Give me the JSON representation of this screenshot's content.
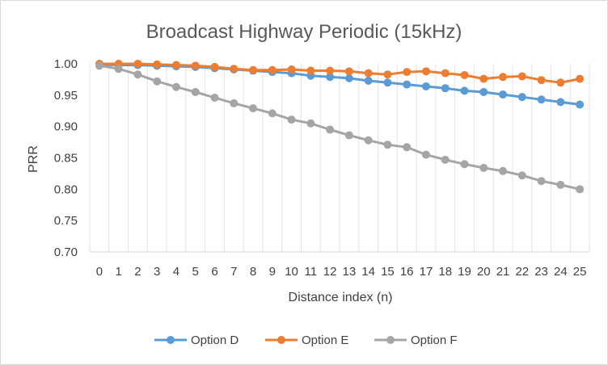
{
  "chart_data": {
    "type": "line",
    "title": "Broadcast Highway Periodic (15kHz)",
    "xlabel": "Distance index (n)",
    "ylabel": "PRR",
    "x": [
      0,
      1,
      2,
      3,
      4,
      5,
      6,
      7,
      8,
      9,
      10,
      11,
      12,
      13,
      14,
      15,
      16,
      17,
      18,
      19,
      20,
      21,
      22,
      23,
      24,
      25
    ],
    "ylim": [
      0.7,
      1.0
    ],
    "yticks": [
      "0.70",
      "0.75",
      "0.80",
      "0.85",
      "0.90",
      "0.95",
      "1.00"
    ],
    "grid": "vertical",
    "legend": "bottom",
    "series": [
      {
        "name": "Option D",
        "color": "#5b9bd5",
        "values": [
          0.999,
          0.998,
          0.998,
          0.997,
          0.996,
          0.995,
          0.993,
          0.991,
          0.989,
          0.987,
          0.985,
          0.981,
          0.979,
          0.977,
          0.973,
          0.97,
          0.967,
          0.964,
          0.961,
          0.957,
          0.955,
          0.951,
          0.947,
          0.943,
          0.939,
          0.935
        ]
      },
      {
        "name": "Option E",
        "color": "#ed7d31",
        "values": [
          1.0,
          1.0,
          1.0,
          0.999,
          0.998,
          0.997,
          0.995,
          0.992,
          0.99,
          0.99,
          0.991,
          0.989,
          0.989,
          0.988,
          0.985,
          0.983,
          0.987,
          0.988,
          0.985,
          0.982,
          0.976,
          0.979,
          0.98,
          0.974,
          0.97,
          0.976
        ]
      },
      {
        "name": "Option F",
        "color": "#a5a5a5",
        "values": [
          0.997,
          0.992,
          0.983,
          0.972,
          0.963,
          0.955,
          0.946,
          0.937,
          0.929,
          0.921,
          0.911,
          0.905,
          0.895,
          0.886,
          0.878,
          0.871,
          0.867,
          0.855,
          0.847,
          0.84,
          0.834,
          0.829,
          0.822,
          0.813,
          0.807,
          0.8
        ]
      }
    ]
  }
}
